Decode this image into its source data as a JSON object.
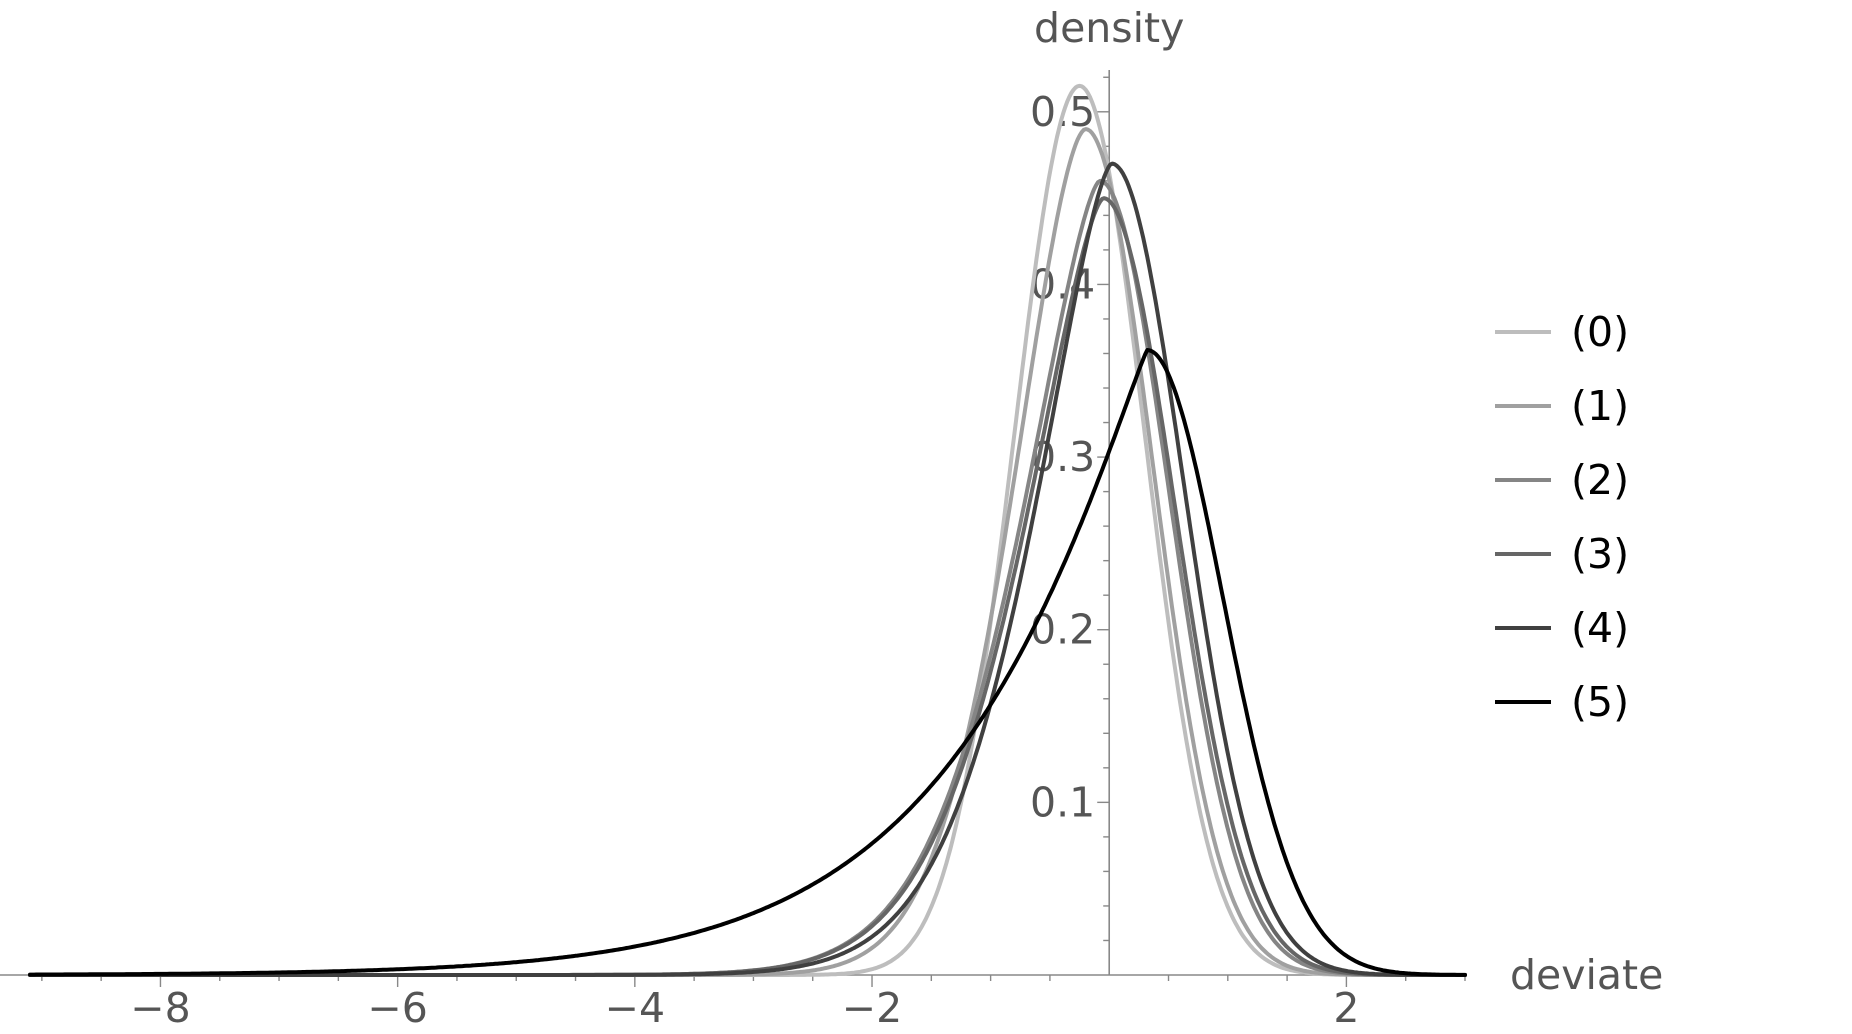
{
  "chart_data": {
    "type": "line",
    "xlabel": "deviate",
    "ylabel": "density",
    "xlim": [
      -9.1,
      3.0
    ],
    "ylim": [
      0,
      0.53
    ],
    "x_ticks": [
      {
        "value": -8,
        "label": "−8"
      },
      {
        "value": -6,
        "label": "−6"
      },
      {
        "value": -4,
        "label": "−4"
      },
      {
        "value": -2,
        "label": "−2"
      },
      {
        "value": 2,
        "label": "2"
      }
    ],
    "y_ticks": [
      {
        "value": 0.1,
        "label": "0.1"
      },
      {
        "value": 0.2,
        "label": "0.2"
      },
      {
        "value": 0.3,
        "label": "0.3"
      },
      {
        "value": 0.4,
        "label": "0.4"
      },
      {
        "value": 0.5,
        "label": "0.5"
      }
    ],
    "legend_position": "right",
    "grid": false,
    "series": [
      {
        "name": "(0)",
        "color": "#bdbdbd",
        "peak_x": -0.25,
        "peak_y": 0.515,
        "left_scale": 0.78,
        "right_scale": 0.78,
        "left_shape": 2.0,
        "right_shape": 2.0
      },
      {
        "name": "(1)",
        "color": "#a0a0a0",
        "peak_x": -0.2,
        "peak_y": 0.49,
        "left_scale": 0.87,
        "right_scale": 0.8,
        "left_shape": 1.7,
        "right_shape": 2.0
      },
      {
        "name": "(2)",
        "color": "#858585",
        "peak_x": -0.08,
        "peak_y": 0.46,
        "left_scale": 0.98,
        "right_scale": 0.83,
        "left_shape": 1.5,
        "right_shape": 2.0
      },
      {
        "name": "(3)",
        "color": "#666666",
        "peak_x": -0.05,
        "peak_y": 0.45,
        "left_scale": 0.99,
        "right_scale": 0.85,
        "left_shape": 1.5,
        "right_shape": 2.0
      },
      {
        "name": "(4)",
        "color": "#404040",
        "peak_x": 0.02,
        "peak_y": 0.47,
        "left_scale": 0.96,
        "right_scale": 0.86,
        "left_shape": 1.5,
        "right_shape": 2.0
      },
      {
        "name": "(5)",
        "color": "#000000",
        "peak_x": 0.32,
        "peak_y": 0.362,
        "left_scale": 1.55,
        "right_scale": 0.9,
        "left_shape": 1.1,
        "right_shape": 2.0
      }
    ]
  }
}
